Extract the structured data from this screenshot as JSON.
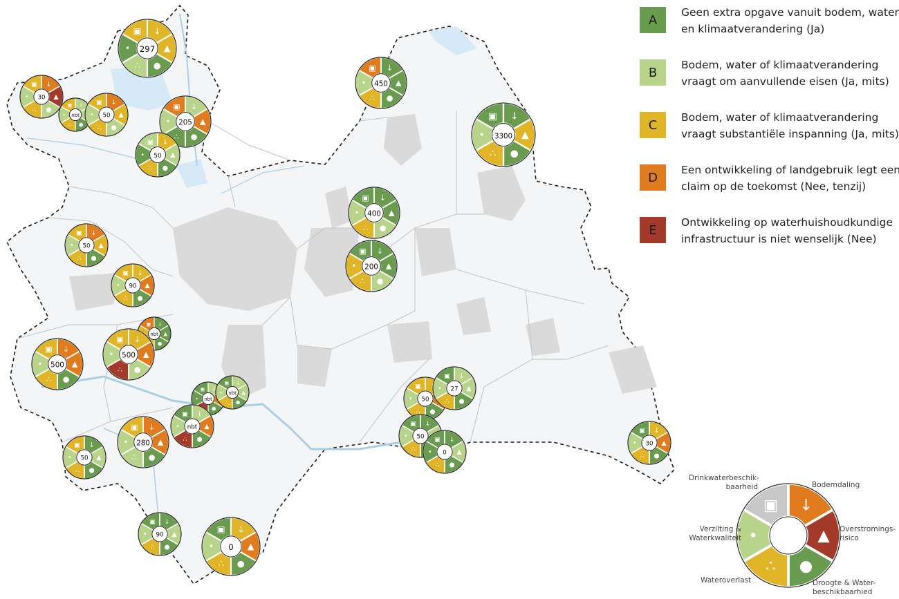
{
  "colors": {
    "A": "#6a9c4f",
    "B": "#b8d48a",
    "C": "#e0b528",
    "D": "#e07c1d",
    "E": "#a33a2a",
    "none": "#c8c8c8"
  },
  "legend": [
    {
      "code": "A",
      "line1": "Geen extra opgave vanuit bodem, water",
      "line2": "en klimaatverandering (Ja)"
    },
    {
      "code": "B",
      "line1": "Bodem, water of klimaatverandering",
      "line2": "vraagt om aanvullende eisen (Ja, mits)"
    },
    {
      "code": "C",
      "line1": "Bodem, water of klimaatverandering",
      "line2": "vraagt substantiële inspanning (Ja, mits)"
    },
    {
      "code": "D",
      "line1": "Een ontwikkeling of landgebruik legt een",
      "line2": "claim op de toekomst (Nee, tenzij)"
    },
    {
      "code": "E",
      "line1": "Ontwikkeling op waterhuishoudkundige",
      "line2": "infrastructuur is niet wenselijk (Nee)"
    }
  ],
  "key": {
    "segments": [
      "Drinkwaterbeschikbaarheid",
      "Bodemdaling",
      "Overstromingsrisico",
      "Droogte & Waterbeschikbaarhied",
      "Wateroverlast",
      "Verzilting & Waterkwaliteit"
    ],
    "colors": [
      "none",
      "D",
      "E",
      "A",
      "C",
      "B"
    ],
    "labels": {
      "drink1": "Drinkwaterbeschik-",
      "drink2": "baarheid",
      "bodem": "Bodemdaling",
      "over1": "Overstromings-",
      "over2": "risico",
      "droog1": "Droogte & Water-",
      "droog2": "beschikbaarhied",
      "wateroverlast": "Wateroverlast",
      "verz1": "Verzilting &",
      "verz2": "Waterkwaliteit"
    }
  },
  "markers": [
    {
      "value": "297",
      "c": [
        "C",
        "C",
        "C",
        "A",
        "B",
        "A"
      ]
    },
    {
      "value": "30",
      "c": [
        "C",
        "D",
        "E",
        "B",
        "C",
        "B"
      ]
    },
    {
      "value": "nbt",
      "c": [
        "C",
        "B",
        "B",
        "A",
        "C",
        "B"
      ]
    },
    {
      "value": "50",
      "c": [
        "C",
        "D",
        "C",
        "B",
        "C",
        "B"
      ]
    },
    {
      "value": "205",
      "c": [
        "D",
        "B",
        "D",
        "A",
        "A",
        "B"
      ]
    },
    {
      "value": "50",
      "c": [
        "B",
        "C",
        "B",
        "A",
        "C",
        "A"
      ]
    },
    {
      "value": "450",
      "c": [
        "D",
        "A",
        "A",
        "A",
        "C",
        "B"
      ]
    },
    {
      "value": "3300",
      "c": [
        "A",
        "A",
        "C",
        "A",
        "C",
        "B"
      ]
    },
    {
      "value": "400",
      "c": [
        "A",
        "A",
        "A",
        "B",
        "C",
        "B"
      ]
    },
    {
      "value": "200",
      "c": [
        "A",
        "A",
        "A",
        "B",
        "C",
        "C"
      ]
    },
    {
      "value": "50",
      "c": [
        "C",
        "D",
        "C",
        "A",
        "C",
        "B"
      ]
    },
    {
      "value": "90",
      "c": [
        "C",
        "C",
        "D",
        "A",
        "C",
        "B"
      ]
    },
    {
      "value": "nbt",
      "c": [
        "D",
        "A",
        "A",
        "A",
        "C",
        "C"
      ]
    },
    {
      "value": "nbt",
      "c": [
        "A",
        "B",
        "D",
        "A",
        "E",
        "A"
      ]
    },
    {
      "value": "500",
      "c": [
        "C",
        "D",
        "D",
        "A",
        "C",
        "B"
      ]
    },
    {
      "value": "500",
      "c": [
        "C",
        "C",
        "D",
        "B",
        "E",
        "B"
      ]
    },
    {
      "value": "nbt",
      "c": [
        "A",
        "B",
        "B",
        "A",
        "C",
        "B"
      ]
    },
    {
      "value": "nbt",
      "c": [
        "A",
        "B",
        "D",
        "A",
        "E",
        "B"
      ]
    },
    {
      "value": "50",
      "c": [
        "C",
        "A",
        "B",
        "A",
        "C",
        "B"
      ]
    },
    {
      "value": "280",
      "c": [
        "C",
        "D",
        "D",
        "A",
        "B",
        "B"
      ]
    },
    {
      "value": "50",
      "c": [
        "C",
        "C",
        "D",
        "A",
        "C",
        "B"
      ]
    },
    {
      "value": "27",
      "c": [
        "A",
        "B",
        "B",
        "A",
        "C",
        "B"
      ]
    },
    {
      "value": "50",
      "c": [
        "A",
        "A",
        "B",
        "A",
        "C",
        "B"
      ]
    },
    {
      "value": "0",
      "c": [
        "A",
        "A",
        "B",
        "A",
        "C",
        "A"
      ]
    },
    {
      "value": "30",
      "c": [
        "A",
        "C",
        "D",
        "A",
        "C",
        "B"
      ]
    },
    {
      "value": "90",
      "c": [
        "A",
        "A",
        "B",
        "A",
        "C",
        "B"
      ]
    },
    {
      "value": "0",
      "c": [
        "A",
        "C",
        "D",
        "A",
        "C",
        "B"
      ]
    },
    {
      "value": "800",
      "c": [
        "A",
        "D",
        "D",
        "A",
        "C",
        "A"
      ]
    }
  ]
}
